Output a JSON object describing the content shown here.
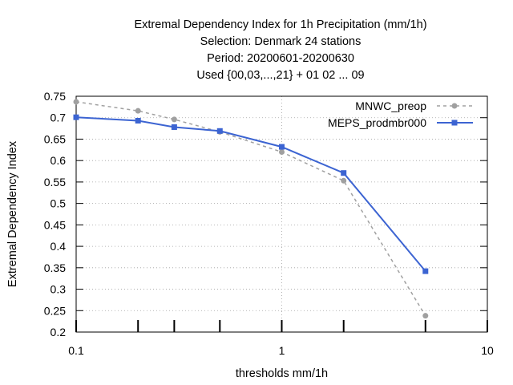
{
  "chart_data": {
    "type": "line",
    "title_lines": [
      "Extremal Dependency Index  for 1h Precipitation (mm/1h)",
      "Selection: Denmark     24 stations",
      "Period: 20200601-20200630",
      "Used {00,03,...,21} + 01 02 ... 09"
    ],
    "xlabel": "thresholds mm/1h",
    "ylabel": "Extremal Dependency Index",
    "xscale": "log",
    "xlim": [
      0.1,
      10
    ],
    "ylim": [
      0.2,
      0.75
    ],
    "x_ticks": [
      0.1,
      1,
      10
    ],
    "x_tick_labels": [
      "0.1",
      "1",
      "10"
    ],
    "y_ticks": [
      0.2,
      0.25,
      0.3,
      0.35,
      0.4,
      0.45,
      0.5,
      0.55,
      0.6,
      0.65,
      0.7,
      0.75
    ],
    "y_tick_labels": [
      "0.2",
      "0.25",
      "0.3",
      "0.35",
      "0.4",
      "0.45",
      "0.5",
      "0.55",
      "0.6",
      "0.65",
      "0.7",
      "0.75"
    ],
    "minor_x_ticks": [
      0.2,
      0.3,
      0.5,
      2,
      5
    ],
    "grid": true,
    "legend_position": "top-right",
    "series": [
      {
        "name": "MNWC_preop",
        "color": "#a0a0a0",
        "dash": true,
        "marker": "circle",
        "x": [
          0.1,
          0.2,
          0.3,
          0.5,
          1,
          2,
          5
        ],
        "y": [
          0.737,
          0.716,
          0.696,
          0.667,
          0.62,
          0.553,
          0.238
        ]
      },
      {
        "name": "MEPS_prodmbr000",
        "color": "#3c64d2",
        "dash": false,
        "marker": "square",
        "x": [
          0.1,
          0.2,
          0.3,
          0.5,
          1,
          2,
          5
        ],
        "y": [
          0.701,
          0.693,
          0.678,
          0.669,
          0.632,
          0.571,
          0.342
        ]
      }
    ]
  }
}
